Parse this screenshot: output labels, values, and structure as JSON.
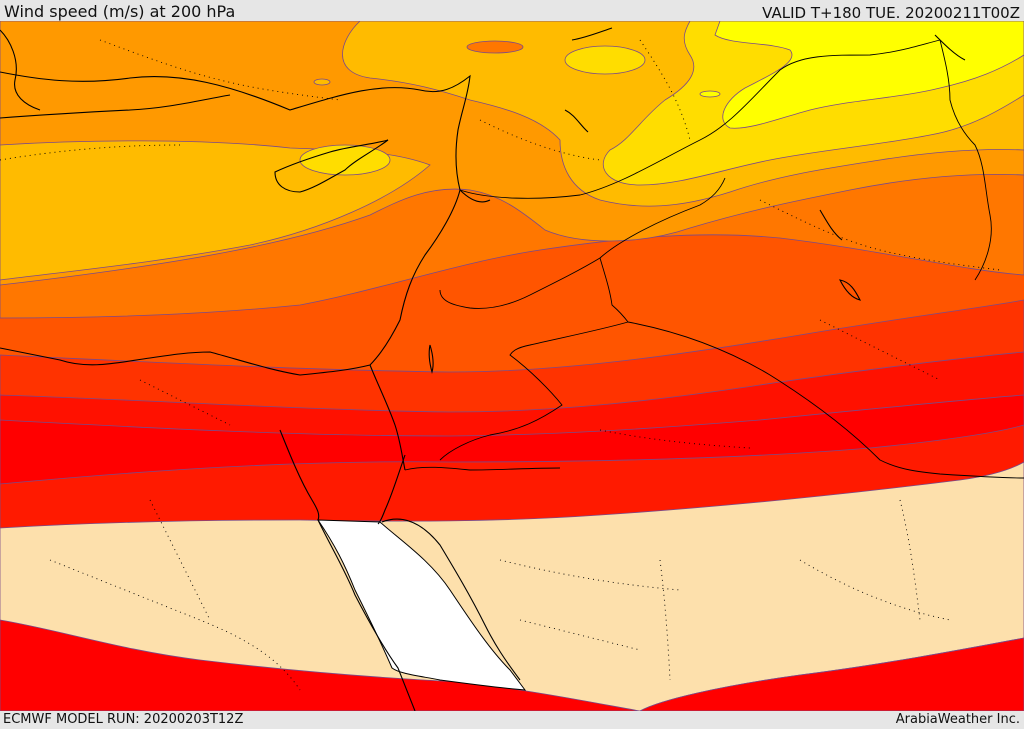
{
  "header": {
    "title": "Wind speed (m/s) at 200 hPa",
    "valid_time": "VALID T+180 TUE. 20200211T00Z"
  },
  "footer": {
    "model_run": "ECMWF MODEL RUN: 20200203T12Z",
    "credit": "ArabiaWeather Inc."
  },
  "map": {
    "variable": "Wind speed",
    "units": "m/s",
    "level": "200 hPa",
    "colors": {
      "band_ffff00": "#ffff00",
      "band_ffdd00": "#ffdd00",
      "band_ffbb00": "#ffbb00",
      "band_ff9900": "#ff9900",
      "band_ff7700": "#ff7700",
      "band_ff5500": "#ff5500",
      "band_ff3300": "#ff3300",
      "band_ff1100": "#ff1100",
      "band_ff0000": "#ff0000",
      "low_wind": "#fde0ac",
      "sea": "#ffffff",
      "coastline": "#000000",
      "contour": "#7a4a8a"
    }
  }
}
